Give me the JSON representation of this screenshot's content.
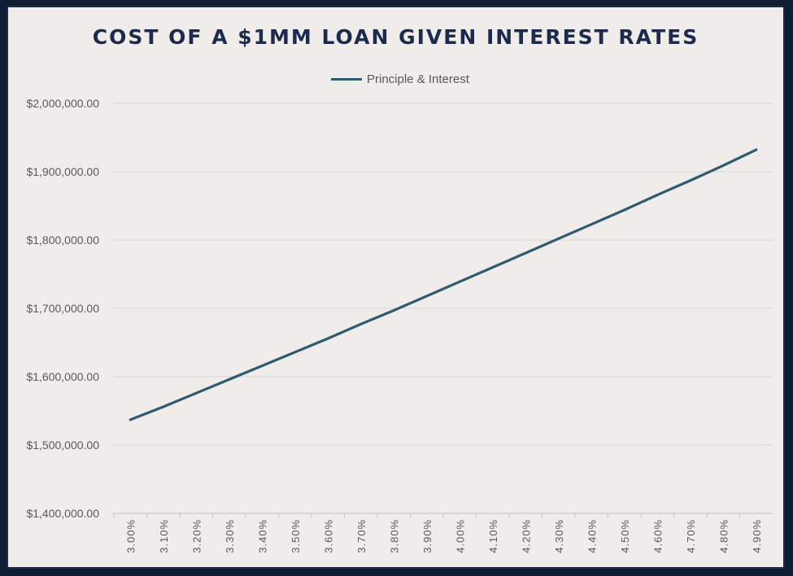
{
  "chart_data": {
    "type": "line",
    "title": "COST OF A $1MM LOAN GIVEN INTEREST RATES",
    "xlabel": "",
    "ylabel": "",
    "categories": [
      "3.00%",
      "3.10%",
      "3.20%",
      "3.30%",
      "3.40%",
      "3.50%",
      "3.60%",
      "3.70%",
      "3.80%",
      "3.90%",
      "4.00%",
      "4.10%",
      "4.20%",
      "4.30%",
      "4.40%",
      "4.50%",
      "4.60%",
      "4.70%",
      "4.80%",
      "4.90%"
    ],
    "series": [
      {
        "name": "Principle & Interest",
        "color": "#2f5b70",
        "values": [
          1537000,
          1556000,
          1576000,
          1596000,
          1616000,
          1636000,
          1656000,
          1677000,
          1697000,
          1718000,
          1739000,
          1760000,
          1781000,
          1802000,
          1823000,
          1844000,
          1866000,
          1887000,
          1909000,
          1932000
        ]
      }
    ],
    "yticks": [
      "$1,400,000.00",
      "$1,500,000.00",
      "$1,600,000.00",
      "$1,700,000.00",
      "$1,800,000.00",
      "$1,900,000.00",
      "$2,000,000.00"
    ],
    "ylim": [
      1400000,
      2000000
    ],
    "grid": true,
    "legend_position": "top"
  }
}
